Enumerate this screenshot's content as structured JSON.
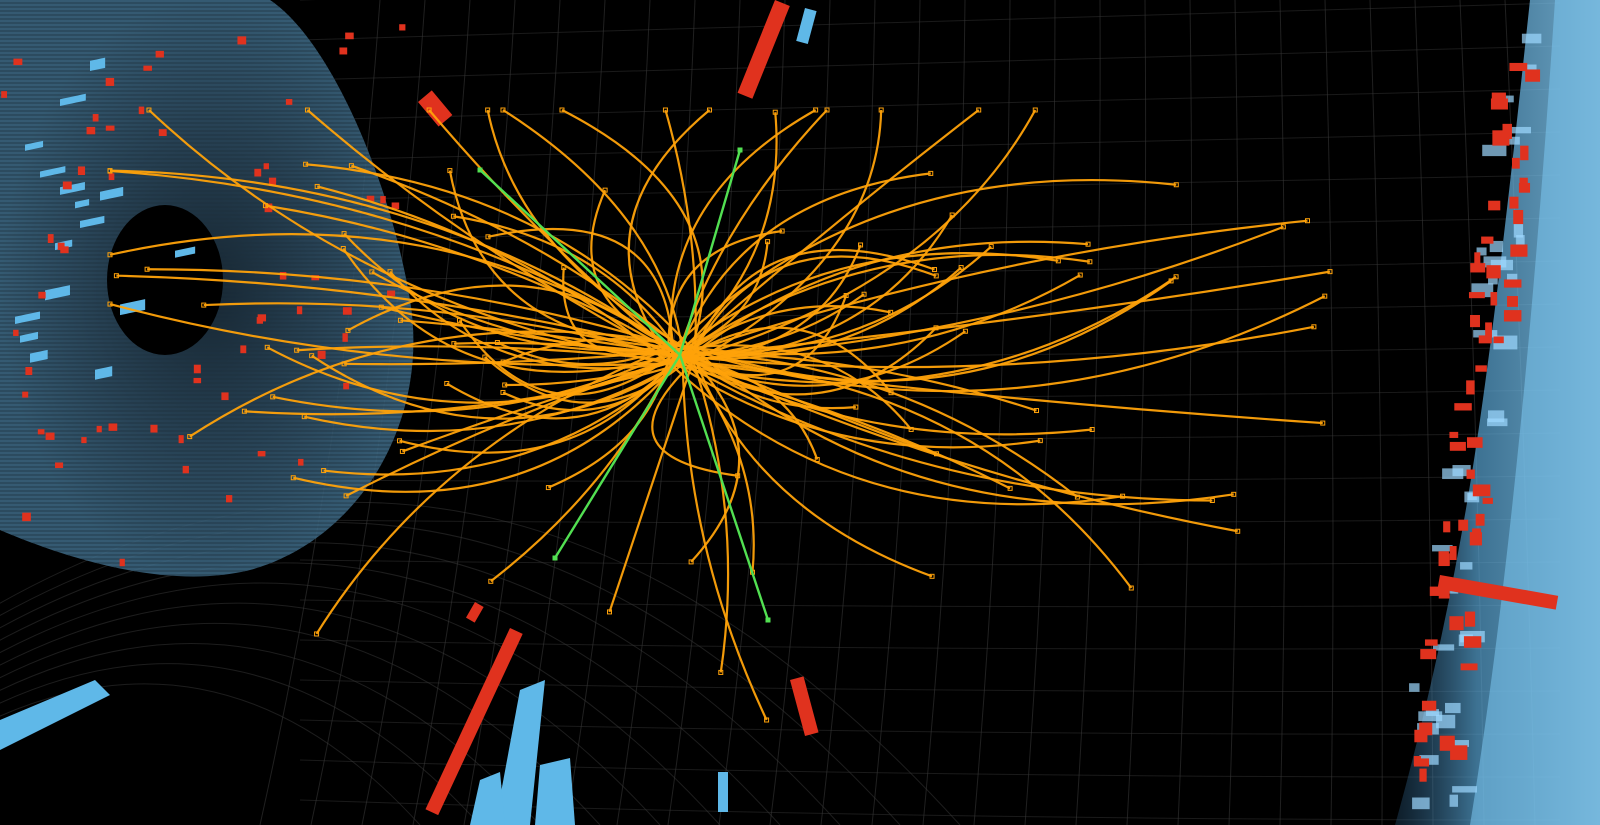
{
  "scene": {
    "background_color": "#000000",
    "grid_color": "#3a3a3a",
    "calorimeter_color": "#5fb8e8",
    "energy_deposit_color": "#e0321e",
    "track_color": "#ffa20a",
    "highlight_track_color": "#52e052"
  },
  "tracks": {
    "orange_count": 110,
    "green_count": 4
  }
}
